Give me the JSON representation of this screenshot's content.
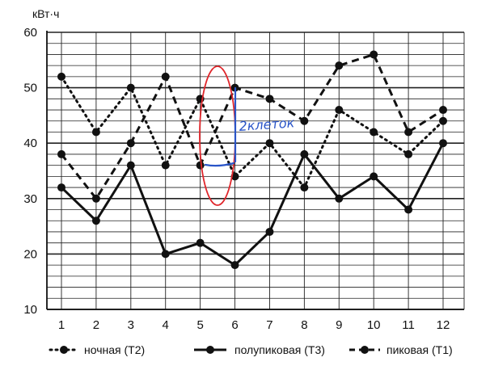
{
  "chart_data": {
    "type": "line",
    "y_unit_label": "кВт·ч",
    "x": [
      1,
      2,
      3,
      4,
      5,
      6,
      7,
      8,
      9,
      10,
      11,
      12
    ],
    "x_tick_labels": [
      "1",
      "2",
      "3",
      "4",
      "5",
      "6",
      "7",
      "8",
      "9",
      "10",
      "11",
      "12"
    ],
    "ylim": [
      10,
      60
    ],
    "y_tick_labels": [
      "10",
      "20",
      "30",
      "40",
      "50",
      "60"
    ],
    "grid": true,
    "legend_position": "bottom",
    "series": [
      {
        "name": "ночная (T2)",
        "style": "dotted",
        "values": [
          52,
          42,
          50,
          36,
          48,
          34,
          40,
          32,
          46,
          42,
          38,
          44
        ]
      },
      {
        "name": "полупиковая (T3)",
        "style": "solid",
        "values": [
          32,
          26,
          36,
          20,
          22,
          18,
          24,
          38,
          30,
          34,
          28,
          40
        ]
      },
      {
        "name": "пиковая (T1)",
        "style": "dashed",
        "values": [
          38,
          30,
          40,
          52,
          36,
          50,
          48,
          44,
          54,
          56,
          42,
          46
        ]
      }
    ],
    "annotation": {
      "text": "2клеток",
      "color": "#2a55c8",
      "ellipse_color": "#e0262b"
    }
  }
}
